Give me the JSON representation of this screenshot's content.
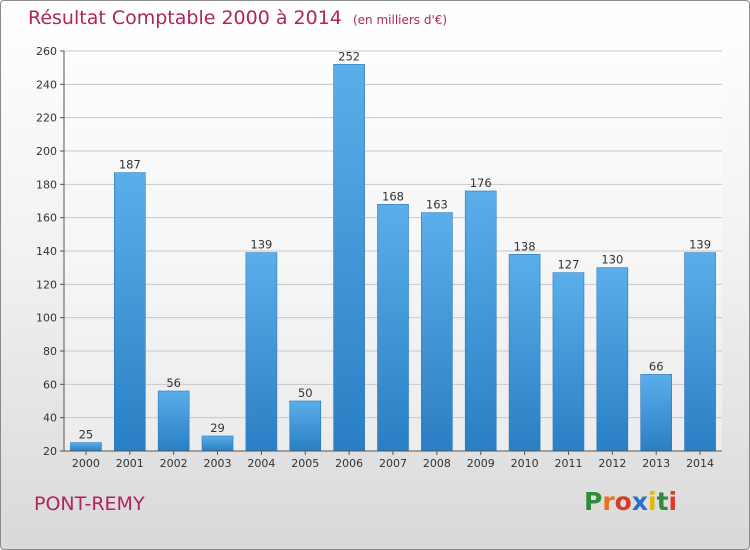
{
  "chart_data": {
    "type": "bar",
    "title": "Résultat Comptable 2000 à 2014",
    "unit": "(en milliers d'€)",
    "categories": [
      "2000",
      "2001",
      "2002",
      "2003",
      "2004",
      "2005",
      "2006",
      "2007",
      "2008",
      "2009",
      "2010",
      "2011",
      "2012",
      "2013",
      "2014"
    ],
    "values": [
      25,
      187,
      56,
      29,
      139,
      50,
      252,
      168,
      163,
      176,
      138,
      127,
      130,
      66,
      139
    ],
    "ylim": [
      20,
      260
    ],
    "yticks": [
      20,
      40,
      60,
      80,
      100,
      120,
      140,
      160,
      180,
      200,
      220,
      240,
      260
    ],
    "grid": true,
    "bar_color": "#3d95d6"
  },
  "commune": "PONT-REMY",
  "logo": {
    "letters": [
      "P",
      "r",
      "o",
      "x",
      "i",
      "t",
      "i"
    ]
  },
  "colors": {
    "accent": "#b0245e"
  }
}
